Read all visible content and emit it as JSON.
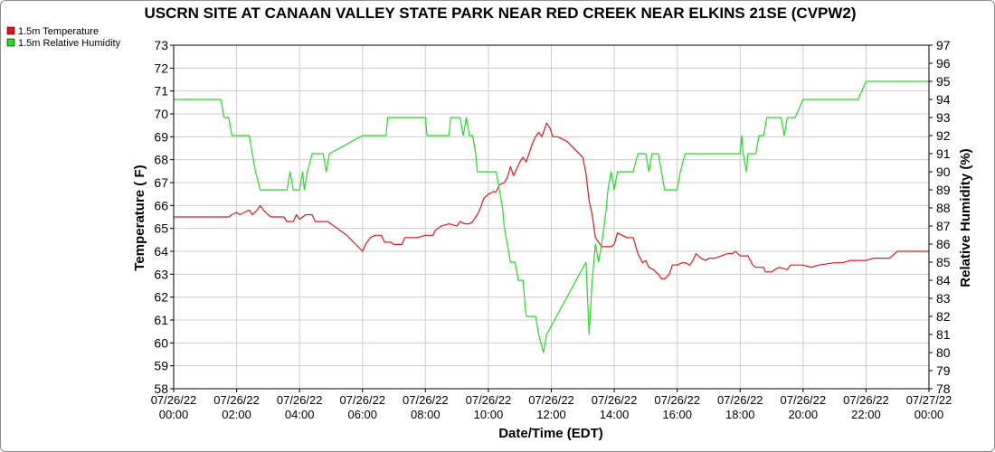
{
  "chart_data": {
    "type": "line",
    "title": "USCRN SITE AT CANAAN VALLEY STATE PARK NEAR RED CREEK NEAR ELKINS 21SE (CVPW2)",
    "xlabel": "Date/Time (EDT)",
    "ylabel": "Temperature ( F)",
    "y2label": "Relative Humidity (%)",
    "xlim": [
      0,
      24
    ],
    "ylim": [
      58,
      73
    ],
    "y2lim": [
      78,
      97
    ],
    "grid": true,
    "legend_position": "top-left",
    "x_ticks": [
      {
        "x": 0,
        "date": "07/26/22",
        "time": "00:00"
      },
      {
        "x": 2,
        "date": "07/26/22",
        "time": "02:00"
      },
      {
        "x": 4,
        "date": "07/26/22",
        "time": "04:00"
      },
      {
        "x": 6,
        "date": "07/26/22",
        "time": "06:00"
      },
      {
        "x": 8,
        "date": "07/26/22",
        "time": "08:00"
      },
      {
        "x": 10,
        "date": "07/26/22",
        "time": "10:00"
      },
      {
        "x": 12,
        "date": "07/26/22",
        "time": "12:00"
      },
      {
        "x": 14,
        "date": "07/26/22",
        "time": "14:00"
      },
      {
        "x": 16,
        "date": "07/26/22",
        "time": "16:00"
      },
      {
        "x": 18,
        "date": "07/26/22",
        "time": "18:00"
      },
      {
        "x": 20,
        "date": "07/26/22",
        "time": "20:00"
      },
      {
        "x": 22,
        "date": "07/26/22",
        "time": "22:00"
      },
      {
        "x": 24,
        "date": "07/27/22",
        "time": "00:00"
      }
    ],
    "y_ticks": [
      58,
      59,
      60,
      61,
      62,
      63,
      64,
      65,
      66,
      67,
      68,
      69,
      70,
      71,
      72,
      73
    ],
    "y2_ticks": [
      78,
      79,
      80,
      81,
      82,
      83,
      84,
      85,
      86,
      87,
      88,
      89,
      90,
      91,
      92,
      93,
      94,
      95,
      96,
      97
    ],
    "series": [
      {
        "name": "1.5m Temperature",
        "axis": "left",
        "color": "#e8141b",
        "points": [
          [
            0,
            65.5
          ],
          [
            0.75,
            65.5
          ],
          [
            1.5,
            65.5
          ],
          [
            1.75,
            65.5
          ],
          [
            1.85,
            65.6
          ],
          [
            2.0,
            65.7
          ],
          [
            2.1,
            65.6
          ],
          [
            2.25,
            65.7
          ],
          [
            2.4,
            65.8
          ],
          [
            2.5,
            65.6
          ],
          [
            2.65,
            65.8
          ],
          [
            2.75,
            66.0
          ],
          [
            2.85,
            65.8
          ],
          [
            3.0,
            65.6
          ],
          [
            3.1,
            65.5
          ],
          [
            3.5,
            65.5
          ],
          [
            3.6,
            65.3
          ],
          [
            3.8,
            65.3
          ],
          [
            3.9,
            65.6
          ],
          [
            4.0,
            65.4
          ],
          [
            4.1,
            65.5
          ],
          [
            4.2,
            65.6
          ],
          [
            4.4,
            65.6
          ],
          [
            4.5,
            65.3
          ],
          [
            4.9,
            65.3
          ],
          [
            5.2,
            65.0
          ],
          [
            5.5,
            64.7
          ],
          [
            6.0,
            64.0
          ],
          [
            6.1,
            64.3
          ],
          [
            6.25,
            64.6
          ],
          [
            6.4,
            64.7
          ],
          [
            6.6,
            64.7
          ],
          [
            6.7,
            64.4
          ],
          [
            6.9,
            64.4
          ],
          [
            7.0,
            64.3
          ],
          [
            7.25,
            64.3
          ],
          [
            7.35,
            64.6
          ],
          [
            7.6,
            64.6
          ],
          [
            7.75,
            64.6
          ],
          [
            8.0,
            64.7
          ],
          [
            8.25,
            64.7
          ],
          [
            8.3,
            64.9
          ],
          [
            8.5,
            65.1
          ],
          [
            8.75,
            65.2
          ],
          [
            9.0,
            65.1
          ],
          [
            9.1,
            65.3
          ],
          [
            9.25,
            65.2
          ],
          [
            9.4,
            65.2
          ],
          [
            9.5,
            65.3
          ],
          [
            9.65,
            65.6
          ],
          [
            9.75,
            65.9
          ],
          [
            9.85,
            66.3
          ],
          [
            10.0,
            66.5
          ],
          [
            10.15,
            66.6
          ],
          [
            10.25,
            66.6
          ],
          [
            10.35,
            66.9
          ],
          [
            10.5,
            67.0
          ],
          [
            10.6,
            67.2
          ],
          [
            10.7,
            67.7
          ],
          [
            10.8,
            67.3
          ],
          [
            10.9,
            67.6
          ],
          [
            11.0,
            67.9
          ],
          [
            11.1,
            68.1
          ],
          [
            11.2,
            67.9
          ],
          [
            11.3,
            68.3
          ],
          [
            11.4,
            68.7
          ],
          [
            11.5,
            69.0
          ],
          [
            11.6,
            69.2
          ],
          [
            11.7,
            69.0
          ],
          [
            11.75,
            69.2
          ],
          [
            11.85,
            69.6
          ],
          [
            11.95,
            69.4
          ],
          [
            12.05,
            69.0
          ],
          [
            12.2,
            69.0
          ],
          [
            12.5,
            68.8
          ],
          [
            13.0,
            68.1
          ],
          [
            13.1,
            67.4
          ],
          [
            13.2,
            66.2
          ],
          [
            13.3,
            65.6
          ],
          [
            13.4,
            64.6
          ],
          [
            13.5,
            64.4
          ],
          [
            13.6,
            64.2
          ],
          [
            13.75,
            64.2
          ],
          [
            13.9,
            64.2
          ],
          [
            14.0,
            64.3
          ],
          [
            14.1,
            64.8
          ],
          [
            14.25,
            64.7
          ],
          [
            14.4,
            64.6
          ],
          [
            14.6,
            64.6
          ],
          [
            14.75,
            63.9
          ],
          [
            14.9,
            63.5
          ],
          [
            15.0,
            63.6
          ],
          [
            15.1,
            63.3
          ],
          [
            15.25,
            63.2
          ],
          [
            15.4,
            63.0
          ],
          [
            15.5,
            62.8
          ],
          [
            15.6,
            62.8
          ],
          [
            15.75,
            63.0
          ],
          [
            15.85,
            63.4
          ],
          [
            16.0,
            63.4
          ],
          [
            16.15,
            63.5
          ],
          [
            16.25,
            63.5
          ],
          [
            16.4,
            63.4
          ],
          [
            16.5,
            63.6
          ],
          [
            16.6,
            63.9
          ],
          [
            16.75,
            63.7
          ],
          [
            16.9,
            63.6
          ],
          [
            17.0,
            63.7
          ],
          [
            17.2,
            63.7
          ],
          [
            17.4,
            63.8
          ],
          [
            17.6,
            63.9
          ],
          [
            17.75,
            63.9
          ],
          [
            17.85,
            64.0
          ],
          [
            18.0,
            63.8
          ],
          [
            18.25,
            63.8
          ],
          [
            18.4,
            63.4
          ],
          [
            18.5,
            63.3
          ],
          [
            18.75,
            63.3
          ],
          [
            18.8,
            63.1
          ],
          [
            19.0,
            63.1
          ],
          [
            19.1,
            63.2
          ],
          [
            19.25,
            63.3
          ],
          [
            19.5,
            63.2
          ],
          [
            19.6,
            63.4
          ],
          [
            20.0,
            63.4
          ],
          [
            20.25,
            63.3
          ],
          [
            20.5,
            63.4
          ],
          [
            21.0,
            63.5
          ],
          [
            21.25,
            63.5
          ],
          [
            21.5,
            63.6
          ],
          [
            22.0,
            63.6
          ],
          [
            22.25,
            63.7
          ],
          [
            22.5,
            63.7
          ],
          [
            22.6,
            63.7
          ],
          [
            22.75,
            63.7
          ],
          [
            23.0,
            64.0
          ],
          [
            23.5,
            64.0
          ],
          [
            24.0,
            64.0
          ]
        ]
      },
      {
        "name": "1.5m Relative Humidity",
        "axis": "right",
        "color": "#22dd22",
        "points": [
          [
            0,
            94
          ],
          [
            1.5,
            94
          ],
          [
            1.6,
            93
          ],
          [
            1.75,
            93
          ],
          [
            1.85,
            92
          ],
          [
            2.4,
            92
          ],
          [
            2.5,
            91
          ],
          [
            2.6,
            90
          ],
          [
            2.75,
            89
          ],
          [
            3.6,
            89
          ],
          [
            3.7,
            90
          ],
          [
            3.8,
            89
          ],
          [
            4.0,
            89
          ],
          [
            4.1,
            90
          ],
          [
            4.15,
            89
          ],
          [
            4.25,
            90
          ],
          [
            4.4,
            91
          ],
          [
            4.75,
            91
          ],
          [
            4.85,
            90
          ],
          [
            4.95,
            91
          ],
          [
            6.0,
            92
          ],
          [
            6.75,
            92
          ],
          [
            6.8,
            93
          ],
          [
            8.0,
            93
          ],
          [
            8.05,
            92
          ],
          [
            8.75,
            92
          ],
          [
            8.8,
            93
          ],
          [
            9.1,
            93
          ],
          [
            9.2,
            92
          ],
          [
            9.3,
            93
          ],
          [
            9.4,
            92
          ],
          [
            9.5,
            92
          ],
          [
            9.6,
            91
          ],
          [
            9.65,
            90
          ],
          [
            10.25,
            90
          ],
          [
            10.35,
            89
          ],
          [
            10.45,
            88
          ],
          [
            10.5,
            87
          ],
          [
            10.6,
            86
          ],
          [
            10.7,
            85
          ],
          [
            10.85,
            85
          ],
          [
            10.95,
            84
          ],
          [
            11.1,
            84
          ],
          [
            11.15,
            83
          ],
          [
            11.2,
            82
          ],
          [
            11.5,
            82
          ],
          [
            11.6,
            81
          ],
          [
            11.75,
            80
          ],
          [
            11.85,
            81
          ],
          [
            13.1,
            85
          ],
          [
            13.2,
            81
          ],
          [
            13.3,
            84
          ],
          [
            13.4,
            86
          ],
          [
            13.5,
            85
          ],
          [
            13.6,
            86
          ],
          [
            13.75,
            88
          ],
          [
            13.8,
            89
          ],
          [
            13.9,
            90
          ],
          [
            14.0,
            89
          ],
          [
            14.1,
            90
          ],
          [
            14.6,
            90
          ],
          [
            14.75,
            91
          ],
          [
            15.0,
            91
          ],
          [
            15.1,
            90
          ],
          [
            15.2,
            91
          ],
          [
            15.4,
            91
          ],
          [
            15.5,
            90
          ],
          [
            15.6,
            89
          ],
          [
            16.0,
            89
          ],
          [
            16.1,
            90
          ],
          [
            16.25,
            91
          ],
          [
            18.0,
            91
          ],
          [
            18.05,
            92
          ],
          [
            18.1,
            91
          ],
          [
            18.2,
            90
          ],
          [
            18.25,
            91
          ],
          [
            18.5,
            91
          ],
          [
            18.6,
            92
          ],
          [
            18.75,
            92
          ],
          [
            18.85,
            93
          ],
          [
            19.3,
            93
          ],
          [
            19.4,
            92
          ],
          [
            19.5,
            93
          ],
          [
            19.75,
            93
          ],
          [
            20.0,
            94
          ],
          [
            21.75,
            94
          ],
          [
            22.0,
            95
          ],
          [
            24.0,
            95
          ]
        ]
      }
    ]
  }
}
